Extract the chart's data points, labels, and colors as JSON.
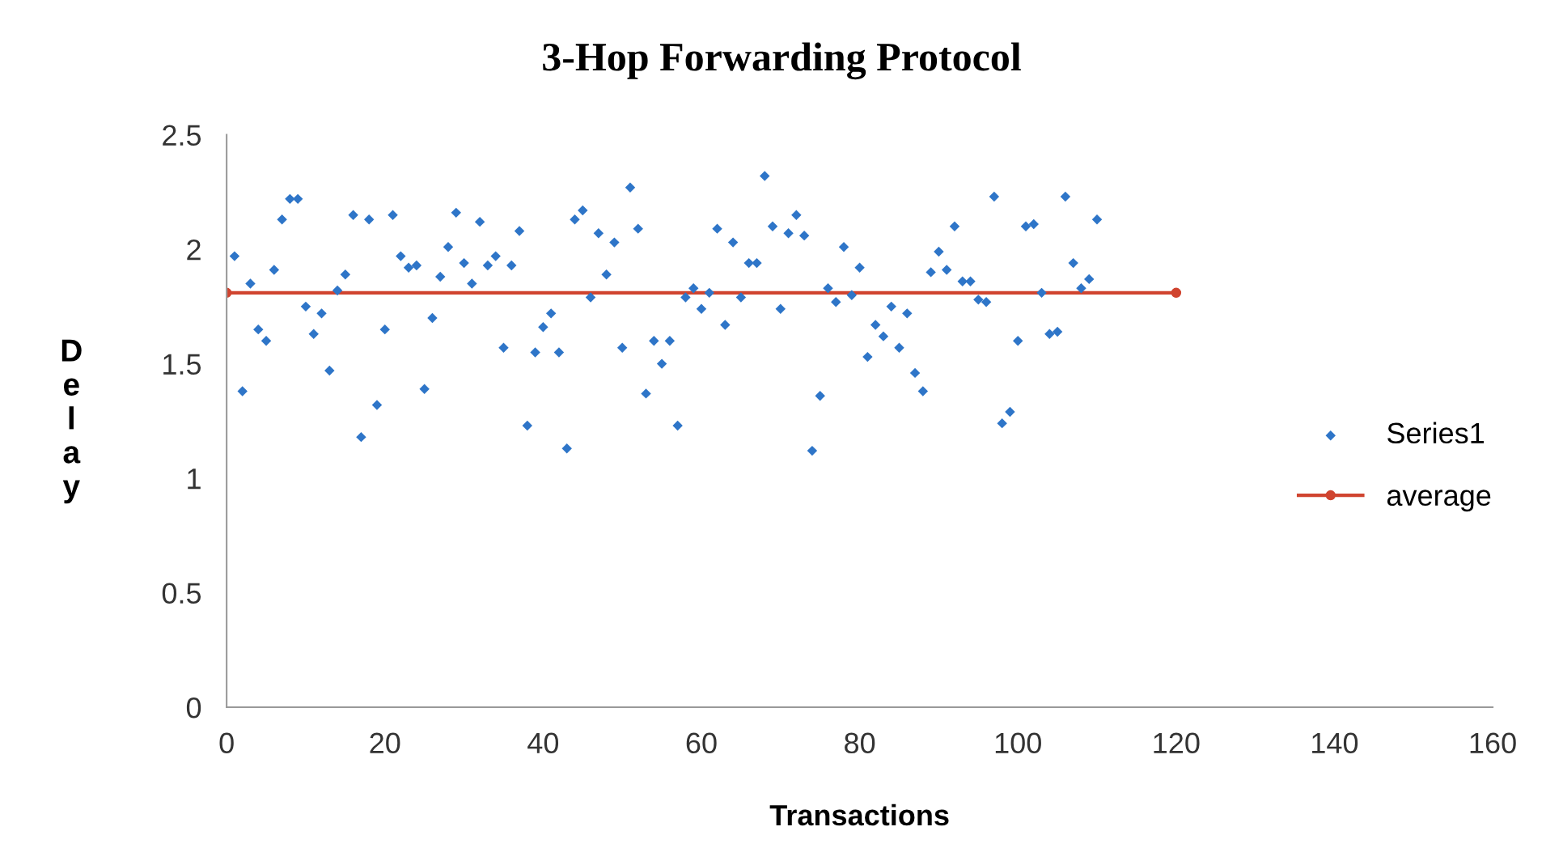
{
  "chart_data": {
    "type": "scatter",
    "title": "3-Hop Forwarding Protocol",
    "xlabel": "Transactions",
    "ylabel": "Delay",
    "xlim": [
      0,
      160
    ],
    "xticks": [
      0,
      20,
      40,
      60,
      80,
      100,
      120,
      140,
      160
    ],
    "ylim": [
      0,
      2.5
    ],
    "yticks": [
      0,
      0.5,
      1,
      1.5,
      2,
      2.5
    ],
    "grid": false,
    "legend": "right",
    "series": [
      {
        "name": "Series1",
        "marker": "diamond",
        "color": "#2e75c8",
        "x": [
          1,
          2,
          3,
          4,
          5,
          6,
          7,
          8,
          9,
          10,
          11,
          12,
          13,
          14,
          15,
          16,
          17,
          18,
          19,
          20,
          21,
          22,
          23,
          24,
          25,
          26,
          27,
          28,
          29,
          30,
          31,
          32,
          33,
          34,
          35,
          36,
          37,
          38,
          39,
          40,
          41,
          42,
          43,
          44,
          45,
          46,
          47,
          48,
          49,
          50,
          51,
          52,
          53,
          54,
          55,
          56,
          57,
          58,
          59,
          60,
          61,
          62,
          63,
          64,
          65,
          66,
          67,
          68,
          69,
          70,
          71,
          72,
          73,
          74,
          75,
          76,
          77,
          78,
          79,
          80,
          81,
          82,
          83,
          84,
          85,
          86,
          87,
          88,
          89,
          90,
          91,
          92,
          93,
          94,
          95,
          96,
          97,
          98,
          99,
          100,
          101,
          102,
          103,
          104,
          105,
          106,
          107,
          108,
          109,
          110
        ],
        "values": [
          1.97,
          1.38,
          1.85,
          1.65,
          1.6,
          1.91,
          2.13,
          2.22,
          2.22,
          1.75,
          1.63,
          1.72,
          1.47,
          1.82,
          1.89,
          2.15,
          1.18,
          2.13,
          1.32,
          1.65,
          2.15,
          1.97,
          1.92,
          1.93,
          1.39,
          1.7,
          1.88,
          2.01,
          2.16,
          1.94,
          1.85,
          2.12,
          1.93,
          1.97,
          1.57,
          1.93,
          2.08,
          1.23,
          1.55,
          1.66,
          1.72,
          1.55,
          1.13,
          2.13,
          2.17,
          1.79,
          2.07,
          1.89,
          2.03,
          1.57,
          2.27,
          2.09,
          1.37,
          1.6,
          1.5,
          1.6,
          1.23,
          1.79,
          1.83,
          1.74,
          1.81,
          2.09,
          1.67,
          2.03,
          1.79,
          1.94,
          1.94,
          2.32,
          2.1,
          1.74,
          2.07,
          2.15,
          2.06,
          1.12,
          1.36,
          1.83,
          1.77,
          2.01,
          1.8,
          1.92,
          1.53,
          1.67,
          1.62,
          1.75,
          1.57,
          1.72,
          1.46,
          1.38,
          1.9,
          1.99,
          1.91,
          2.1,
          1.86,
          1.86,
          1.78,
          1.77,
          2.23,
          1.24,
          1.29,
          1.6,
          2.1,
          2.11,
          1.81,
          1.63,
          1.64,
          2.23,
          1.94,
          1.83,
          1.87,
          2.13
        ]
      },
      {
        "name": "average",
        "type": "line",
        "marker": "circle",
        "line_style": "solid",
        "color": "#d0442f",
        "x": [
          0,
          120
        ],
        "values": [
          1.81,
          1.81
        ]
      }
    ]
  }
}
